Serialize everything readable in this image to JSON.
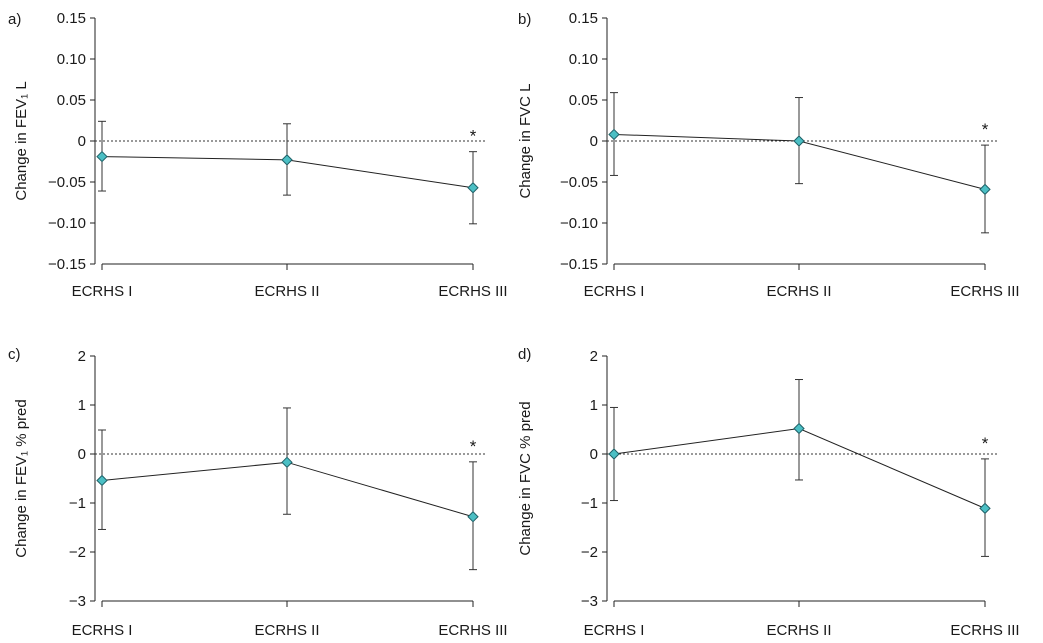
{
  "chart_data": [
    {
      "panel": "a)",
      "type": "line",
      "ylabel": "Change in FEV₁ L",
      "categories": [
        "ECRHS I",
        "ECRHS II",
        "ECRHS III"
      ],
      "ylim": [
        -0.15,
        0.15
      ],
      "yticks": [
        0.15,
        0.1,
        0.05,
        0,
        -0.05,
        -0.1,
        -0.15
      ],
      "ytick_labels": [
        "0.15",
        "0.10",
        "0.05",
        "0",
        "−0.05",
        "−0.10",
        "−0.15"
      ],
      "reference_line": 0,
      "series": [
        {
          "values": [
            -0.019,
            -0.023,
            -0.057
          ],
          "ci_low": [
            -0.061,
            -0.066,
            -0.101
          ],
          "ci_high": [
            0.024,
            0.021,
            -0.013
          ]
        }
      ],
      "annotations": [
        {
          "category": "ECRHS III",
          "text": "*"
        }
      ],
      "marker_color": "#4bbfc4"
    },
    {
      "panel": "b)",
      "type": "line",
      "ylabel": "Change in FVC L",
      "categories": [
        "ECRHS I",
        "ECRHS II",
        "ECRHS III"
      ],
      "ylim": [
        -0.15,
        0.15
      ],
      "yticks": [
        0.15,
        0.1,
        0.05,
        0,
        -0.05,
        -0.1,
        -0.15
      ],
      "ytick_labels": [
        "0.15",
        "0.10",
        "0.05",
        "0",
        "−0.05",
        "−0.10",
        "−0.15"
      ],
      "reference_line": 0,
      "series": [
        {
          "values": [
            0.008,
            0.0,
            -0.059
          ],
          "ci_low": [
            -0.042,
            -0.052,
            -0.112
          ],
          "ci_high": [
            0.059,
            0.053,
            -0.005
          ]
        }
      ],
      "annotations": [
        {
          "category": "ECRHS III",
          "text": "*"
        }
      ],
      "marker_color": "#4bbfc4"
    },
    {
      "panel": "c)",
      "type": "line",
      "ylabel": "Change in FEV₁ % pred",
      "categories": [
        "ECRHS I",
        "ECRHS II",
        "ECRHS III"
      ],
      "ylim": [
        -3,
        2
      ],
      "yticks": [
        2,
        1,
        0,
        -1,
        -2,
        -3
      ],
      "ytick_labels": [
        "2",
        "1",
        "0",
        "−1",
        "−2",
        "−3"
      ],
      "reference_line": 0,
      "series": [
        {
          "values": [
            -0.54,
            -0.17,
            -1.28
          ],
          "ci_low": [
            -1.54,
            -1.23,
            -2.36
          ],
          "ci_high": [
            0.49,
            0.94,
            -0.16
          ]
        }
      ],
      "annotations": [
        {
          "category": "ECRHS III",
          "text": "*"
        }
      ],
      "marker_color": "#4bbfc4"
    },
    {
      "panel": "d)",
      "type": "line",
      "ylabel": "Change in FVC % pred",
      "categories": [
        "ECRHS I",
        "ECRHS II",
        "ECRHS III"
      ],
      "ylim": [
        -3,
        2
      ],
      "yticks": [
        2,
        1,
        0,
        -1,
        -2,
        -3
      ],
      "ytick_labels": [
        "2",
        "1",
        "0",
        "−1",
        "−2",
        "−3"
      ],
      "reference_line": 0,
      "series": [
        {
          "values": [
            0.0,
            0.52,
            -1.11
          ],
          "ci_low": [
            -0.95,
            -0.53,
            -2.09
          ],
          "ci_high": [
            0.95,
            1.52,
            -0.1
          ]
        }
      ],
      "annotations": [
        {
          "category": "ECRHS III",
          "text": "*"
        }
      ],
      "marker_color": "#4bbfc4"
    }
  ]
}
